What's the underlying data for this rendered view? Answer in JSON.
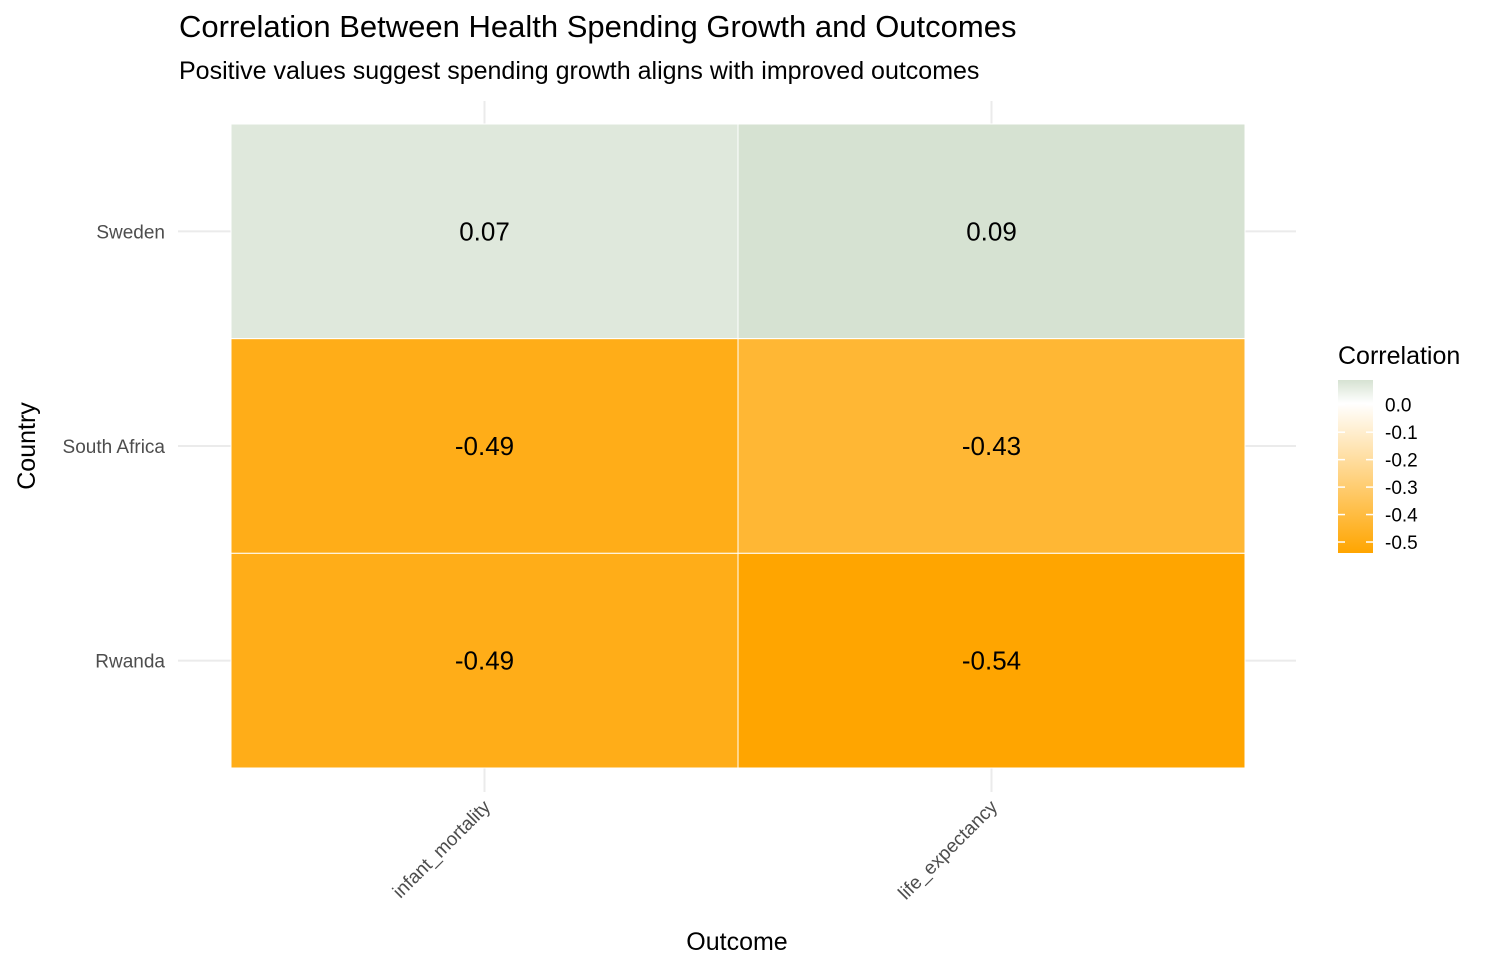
{
  "title": "Correlation Between Health Spending Growth and Outcomes",
  "subtitle": "Positive values suggest spending growth aligns with improved outcomes",
  "chart_data": {
    "type": "heatmap",
    "title": "Correlation Between Health Spending Growth and Outcomes",
    "subtitle": "Positive values suggest spending growth aligns with improved outcomes",
    "xlabel": "Outcome",
    "ylabel": "Country",
    "x_categories": [
      "infant_mortality",
      "life_expectancy"
    ],
    "y_categories": [
      "Sweden",
      "South Africa",
      "Rwanda"
    ],
    "cells": [
      {
        "y": "Sweden",
        "x": "infant_mortality",
        "value": 0.07,
        "label": "0.07"
      },
      {
        "y": "Sweden",
        "x": "life_expectancy",
        "value": 0.09,
        "label": "0.09"
      },
      {
        "y": "South Africa",
        "x": "infant_mortality",
        "value": -0.49,
        "label": "-0.49"
      },
      {
        "y": "South Africa",
        "x": "life_expectancy",
        "value": -0.43,
        "label": "-0.43"
      },
      {
        "y": "Rwanda",
        "x": "infant_mortality",
        "value": -0.49,
        "label": "-0.49"
      },
      {
        "y": "Rwanda",
        "x": "life_expectancy",
        "value": -0.54,
        "label": "-0.54"
      }
    ],
    "legend": {
      "title": "Correlation",
      "placement": "right",
      "ticks": [
        0.0,
        -0.1,
        -0.2,
        -0.3,
        -0.4,
        -0.5
      ],
      "tick_labels": [
        "0.0",
        "-0.1",
        "-0.2",
        "-0.3",
        "-0.4",
        "-0.5"
      ],
      "range": [
        -0.54,
        0.09
      ]
    },
    "colors": {
      "low": "#ffa500",
      "mid": "#ffffff",
      "high": "#d6e2d2"
    },
    "grid": true
  }
}
